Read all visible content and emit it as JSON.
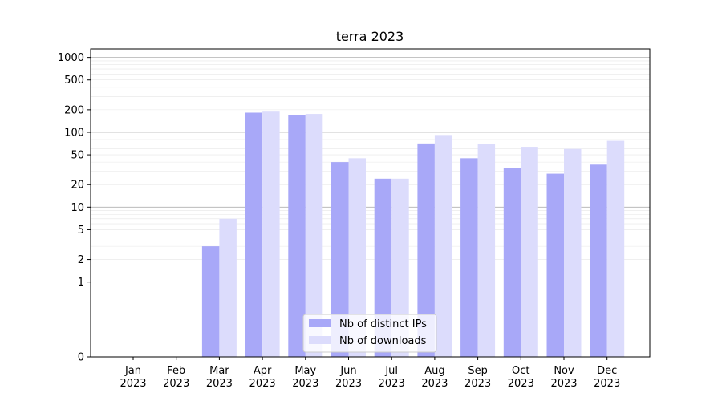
{
  "chart_data": {
    "type": "bar",
    "title": "terra 2023",
    "xlabel": "",
    "ylabel": "",
    "yscale": "symlog",
    "ylim": [
      0,
      1300
    ],
    "yticks": [
      0,
      1,
      2,
      5,
      10,
      20,
      50,
      100,
      200,
      500,
      1000
    ],
    "grid": "horizontal",
    "legend_position": "lower-center",
    "categories": [
      [
        "Jan",
        "2023"
      ],
      [
        "Feb",
        "2023"
      ],
      [
        "Mar",
        "2023"
      ],
      [
        "Apr",
        "2023"
      ],
      [
        "May",
        "2023"
      ],
      [
        "Jun",
        "2023"
      ],
      [
        "Jul",
        "2023"
      ],
      [
        "Aug",
        "2023"
      ],
      [
        "Sep",
        "2023"
      ],
      [
        "Oct",
        "2023"
      ],
      [
        "Nov",
        "2023"
      ],
      [
        "Dec",
        "2023"
      ]
    ],
    "series": [
      {
        "name": "Nb of distinct IPs",
        "color": "#a8a8f8",
        "values": [
          0,
          0,
          3,
          183,
          168,
          40,
          24,
          71,
          45,
          33,
          28,
          37
        ]
      },
      {
        "name": "Nb of downloads",
        "color": "#dcdcfc",
        "values": [
          0,
          0,
          7,
          189,
          176,
          45,
          24,
          92,
          69,
          64,
          60,
          77
        ]
      }
    ]
  }
}
